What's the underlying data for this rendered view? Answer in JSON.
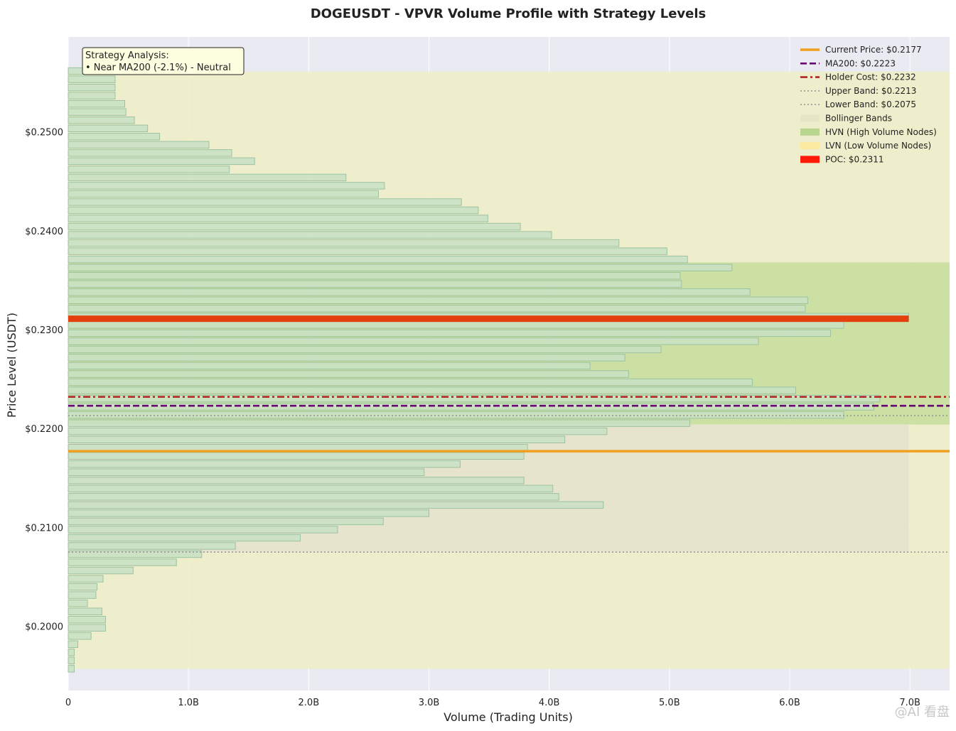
{
  "chart_data": {
    "type": "bar",
    "orientation": "horizontal",
    "title": "DOGEUSDT - VPVR Volume Profile with Strategy Levels",
    "xlabel": "Volume (Trading Units)",
    "ylabel": "Price Level (USDT)",
    "xlim": [
      0,
      7.33
    ],
    "ylim": [
      0.1935,
      0.2596
    ],
    "x_unit": "billions",
    "xticks": [
      0,
      1,
      2,
      3,
      4,
      5,
      6,
      7
    ],
    "xtick_labels": [
      "0",
      "1.0B",
      "2.0B",
      "3.0B",
      "4.0B",
      "5.0B",
      "6.0B",
      "7.0B"
    ],
    "yticks": [
      0.2,
      0.21,
      0.22,
      0.23,
      0.24,
      0.25
    ],
    "ytick_labels": [
      "$0.2000",
      "$0.2100",
      "$0.2200",
      "$0.2300",
      "$0.2400",
      "$0.2500"
    ],
    "grid": true,
    "legend_position": "top-right",
    "bin_start": 0.1957,
    "bin_size": 0.000828,
    "volumes": [
      0.05,
      0.05,
      0.05,
      0.08,
      0.19,
      0.31,
      0.31,
      0.28,
      0.16,
      0.23,
      0.24,
      0.29,
      0.54,
      0.9,
      1.11,
      1.39,
      1.93,
      2.24,
      2.62,
      3.0,
      4.45,
      4.08,
      4.03,
      3.79,
      2.96,
      3.26,
      3.79,
      3.82,
      4.13,
      4.48,
      5.17,
      6.45,
      6.7,
      6.75,
      6.05,
      5.69,
      4.66,
      4.34,
      4.63,
      4.93,
      5.74,
      6.34,
      6.45,
      6.99,
      6.13,
      6.15,
      5.67,
      5.1,
      5.09,
      5.52,
      5.15,
      4.98,
      4.58,
      4.02,
      3.76,
      3.49,
      3.41,
      3.27,
      2.58,
      2.63,
      2.31,
      1.34,
      1.55,
      1.36,
      1.17,
      0.76,
      0.66,
      0.55,
      0.48,
      0.47,
      0.39,
      0.39,
      0.39,
      0.39
    ],
    "bollinger_bands": {
      "upper": 0.2213,
      "lower": 0.2075,
      "range": [
        0.1957,
        0.2561
      ]
    },
    "hvn_range": [
      0.2204,
      0.2368
    ],
    "lvn_range": [
      0.2075,
      0.2204
    ],
    "lvn_max_volume": 6.99,
    "levels": [
      {
        "key": "holder_cost",
        "price": 0.2232,
        "color": "#b22222",
        "style": "dashdot"
      },
      {
        "key": "ma200",
        "price": 0.2223,
        "color": "#6a0572",
        "style": "dashed"
      },
      {
        "key": "upper_band",
        "price": 0.2213,
        "color": "#999999",
        "style": "dotted"
      },
      {
        "key": "current_price",
        "price": 0.2177,
        "color": "#f0a020",
        "style": "solid"
      },
      {
        "key": "lower_band",
        "price": 0.2075,
        "color": "#999999",
        "style": "dotted"
      }
    ],
    "poc": {
      "price": 0.2311,
      "volume": 6.99,
      "color": "#e3400e"
    },
    "legend": [
      {
        "label": "Current Price: $0.2177",
        "kind": "line",
        "color": "#f0a020",
        "style": "solid"
      },
      {
        "label": "MA200: $0.2223",
        "kind": "line",
        "color": "#6a0572",
        "style": "dashed"
      },
      {
        "label": "Holder Cost: $0.2232",
        "kind": "line",
        "color": "#b22222",
        "style": "dashdot"
      },
      {
        "label": "Upper Band: $0.2213",
        "kind": "line",
        "color": "#999999",
        "style": "dotted"
      },
      {
        "label": "Lower Band: $0.2075",
        "kind": "line",
        "color": "#999999",
        "style": "dotted"
      },
      {
        "label": "Bollinger Bands",
        "kind": "patch",
        "color": "#e6e6c4"
      },
      {
        "label": "HVN (High Volume Nodes)",
        "kind": "patch",
        "color": "#b9d68f"
      },
      {
        "label": "LVN (Low Volume Nodes)",
        "kind": "patch",
        "color": "#fbeaa0"
      },
      {
        "label": "POC: $0.2311",
        "kind": "patch",
        "color": "#ff1a0a"
      }
    ],
    "annotation": [
      "Strategy Analysis:",
      "• Near MA200 (-2.1%) - Neutral"
    ]
  },
  "colors": {
    "plot_bg": "#eaeaf2",
    "grid": "#ffffff",
    "bar_fill": "#c8e0c4",
    "bar_stroke": "#9cc2a0",
    "band_fill": "#eeeec8",
    "hvn_fill": "#bcd98f",
    "lvn_fill": "#e4e2cc",
    "annotation_bg": "#fdfde0"
  },
  "watermark": "@AI 看盘"
}
